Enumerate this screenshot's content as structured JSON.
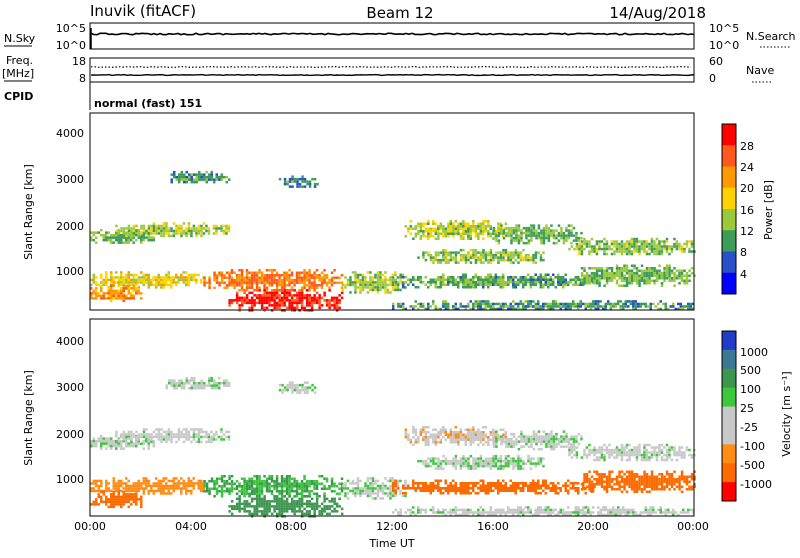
{
  "header": {
    "station": "Inuvik (fitACF)",
    "beam": "Beam 12",
    "date": "14/Aug/2018"
  },
  "panels": {
    "nsky_label": "N.Sky",
    "nsky_ticks": [
      "10^5",
      "10^0"
    ],
    "nsearch_label": "N.Search",
    "nsearch_ticks": [
      "10^5",
      "10^0"
    ],
    "freq_label_1": "Freq.",
    "freq_label_2": "[MHz]",
    "freq_ticks": [
      "18",
      "8"
    ],
    "nave_label": "Nave",
    "nave_ticks": [
      "60",
      "0"
    ],
    "cpid_label": "CPID",
    "cpid_value": "normal (fast) 151"
  },
  "axes": {
    "ylabel": "Slant Range [km]",
    "yticks": [
      "4000",
      "3000",
      "2000",
      "1000"
    ],
    "xticks": [
      "00:00",
      "04:00",
      "08:00",
      "12:00",
      "16:00",
      "20:00",
      "00:00"
    ],
    "xlabel": "Time UT"
  },
  "colorbars": {
    "power_label": "Power [dB]",
    "power_ticks": [
      "28",
      "24",
      "20",
      "16",
      "12",
      "8",
      "4"
    ],
    "power_colors": [
      "#ff0000",
      "#ff5a1e",
      "#ff9900",
      "#ffd200",
      "#9cc83c",
      "#3c9c5a",
      "#2850c8",
      "#0000ff"
    ],
    "velocity_label": "Velocity [m s⁻¹]",
    "velocity_ticks": [
      "1000",
      "500",
      "100",
      "25",
      "-25",
      "-100",
      "-500",
      "-1000"
    ],
    "velocity_colors": [
      "#1e3cc8",
      "#3c7896",
      "#3c9650",
      "#3cc83c",
      "#c8c8c8",
      "#c8c8c8",
      "#ff8c14",
      "#ff6a00",
      "#ff0000"
    ]
  },
  "chart_data": {
    "type": "heatmap",
    "x_range_hours": [
      0,
      24
    ],
    "y_range_km": [
      180,
      4600
    ],
    "power_range_db": [
      0,
      32
    ],
    "velocity_range_ms": [
      -1200,
      1200
    ],
    "echo_regions": [
      {
        "t": [
          0.0,
          2.5
        ],
        "r": [
          1700,
          2000
        ],
        "power": 12,
        "velocity": 10
      },
      {
        "t": [
          1.0,
          5.5
        ],
        "r": [
          1850,
          2150
        ],
        "power": 14,
        "velocity": 5
      },
      {
        "t": [
          0.0,
          4.5
        ],
        "r": [
          700,
          1050
        ],
        "power": 18,
        "velocity": -60
      },
      {
        "t": [
          0.0,
          2.0
        ],
        "r": [
          400,
          750
        ],
        "power": 22,
        "velocity": -400
      },
      {
        "t": [
          3.0,
          5.5
        ],
        "r": [
          3050,
          3300
        ],
        "power": 10,
        "velocity": 5
      },
      {
        "t": [
          7.5,
          9.0
        ],
        "r": [
          2950,
          3200
        ],
        "power": 9,
        "velocity": 5
      },
      {
        "t": [
          4.5,
          10.0
        ],
        "r": [
          650,
          1100
        ],
        "power": 24,
        "velocity": 60
      },
      {
        "t": [
          5.5,
          10.0
        ],
        "r": [
          200,
          650
        ],
        "power": 29,
        "velocity": 120
      },
      {
        "t": [
          10.0,
          12.5
        ],
        "r": [
          600,
          1050
        ],
        "power": 14,
        "velocity": 20
      },
      {
        "t": [
          12.5,
          16.5
        ],
        "r": [
          1800,
          2200
        ],
        "power": 15,
        "velocity": -10
      },
      {
        "t": [
          13.0,
          18.0
        ],
        "r": [
          1250,
          1550
        ],
        "power": 13,
        "velocity": 20
      },
      {
        "t": [
          12.0,
          20.0
        ],
        "r": [
          700,
          1000
        ],
        "power": 11,
        "velocity": -200
      },
      {
        "t": [
          16.0,
          19.5
        ],
        "r": [
          1700,
          2100
        ],
        "power": 12,
        "velocity": 5
      },
      {
        "t": [
          19.0,
          24.0
        ],
        "r": [
          1450,
          1800
        ],
        "power": 13,
        "velocity": 5
      },
      {
        "t": [
          19.5,
          24.0
        ],
        "r": [
          750,
          1200
        ],
        "power": 12,
        "velocity": -150
      },
      {
        "t": [
          12.0,
          24.0
        ],
        "r": [
          200,
          400
        ],
        "power": 10,
        "velocity": 5
      }
    ]
  }
}
